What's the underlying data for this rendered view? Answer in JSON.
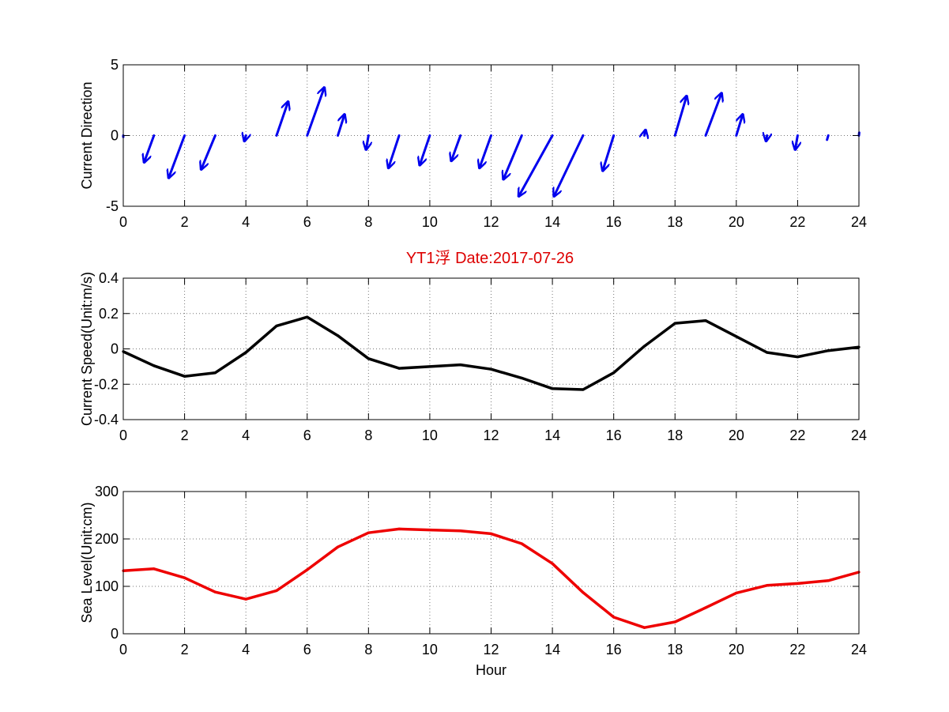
{
  "figure_title": "YT1浮    Date:2017-07-26",
  "colors": {
    "direction": "#0000ee",
    "speed": "#000000",
    "sea_level": "#ee0000",
    "title": "#dd0000",
    "axes": "#000000",
    "grid": "#777777"
  },
  "chart_data": [
    {
      "type": "quiver",
      "title": "",
      "xlabel": "",
      "ylabel": "Current Direction",
      "xlim": [
        0,
        24
      ],
      "ylim": [
        -5,
        5
      ],
      "xticks": [
        0,
        2,
        4,
        6,
        8,
        10,
        12,
        14,
        16,
        18,
        20,
        22,
        24
      ],
      "yticks": [
        -5,
        0,
        5
      ],
      "grid": true,
      "series": [
        {
          "color_key": "direction",
          "x": [
            0,
            1,
            2,
            3,
            4,
            5,
            6,
            7,
            8,
            9,
            10,
            11,
            12,
            13,
            14,
            15,
            16,
            17,
            18,
            19,
            20,
            21,
            22,
            23,
            24
          ],
          "u": [
            0.0,
            -0.32,
            -0.52,
            -0.46,
            -0.05,
            0.38,
            0.56,
            0.22,
            -0.08,
            -0.35,
            -0.33,
            -0.3,
            -0.38,
            -0.6,
            -1.1,
            -0.95,
            -0.36,
            0.04,
            0.38,
            0.52,
            0.21,
            -0.03,
            -0.08,
            -0.04,
            0.01
          ],
          "v": [
            -0.1,
            -1.9,
            -3.0,
            -2.4,
            -0.4,
            2.4,
            3.4,
            1.5,
            -1.0,
            -2.3,
            -2.1,
            -1.8,
            -2.3,
            -3.1,
            -4.3,
            -4.3,
            -2.5,
            0.4,
            2.8,
            3.0,
            1.5,
            -0.4,
            -1.0,
            -0.3,
            0.2
          ]
        }
      ]
    },
    {
      "type": "line",
      "title": "YT1浮    Date:2017-07-26",
      "xlabel": "",
      "ylabel": "Current Speed(Unit:m/s)",
      "xlim": [
        0,
        24
      ],
      "ylim": [
        -0.4,
        0.4
      ],
      "xticks": [
        0,
        2,
        4,
        6,
        8,
        10,
        12,
        14,
        16,
        18,
        20,
        22,
        24
      ],
      "yticks": [
        -0.4,
        -0.2,
        0,
        0.2,
        0.4
      ],
      "grid": true,
      "series": [
        {
          "color_key": "speed",
          "x": [
            0,
            1,
            2,
            3,
            4,
            5,
            6,
            7,
            8,
            9,
            10,
            11,
            12,
            13,
            14,
            15,
            16,
            17,
            18,
            19,
            20,
            21,
            22,
            23,
            24
          ],
          "values": [
            -0.015,
            -0.095,
            -0.155,
            -0.135,
            -0.02,
            0.13,
            0.18,
            0.075,
            -0.055,
            -0.11,
            -0.1,
            -0.09,
            -0.115,
            -0.165,
            -0.225,
            -0.23,
            -0.135,
            0.015,
            0.145,
            0.16,
            0.07,
            -0.02,
            -0.045,
            -0.01,
            0.01
          ]
        }
      ]
    },
    {
      "type": "line",
      "title": "",
      "xlabel": "Hour",
      "ylabel": "Sea Level(Unit:cm)",
      "xlim": [
        0,
        24
      ],
      "ylim": [
        0,
        300
      ],
      "xticks": [
        0,
        2,
        4,
        6,
        8,
        10,
        12,
        14,
        16,
        18,
        20,
        22,
        24
      ],
      "yticks": [
        0,
        100,
        200,
        300
      ],
      "grid": true,
      "series": [
        {
          "color_key": "sea_level",
          "x": [
            0,
            1,
            2,
            3,
            4,
            5,
            6,
            7,
            8,
            9,
            10,
            11,
            12,
            13,
            14,
            15,
            16,
            17,
            18,
            19,
            20,
            21,
            22,
            23,
            24
          ],
          "values": [
            133,
            137,
            118,
            88,
            73,
            91,
            135,
            183,
            213,
            221,
            219,
            217,
            211,
            190,
            148,
            87,
            35,
            13,
            25,
            55,
            86,
            102,
            106,
            112,
            130
          ]
        }
      ]
    }
  ]
}
